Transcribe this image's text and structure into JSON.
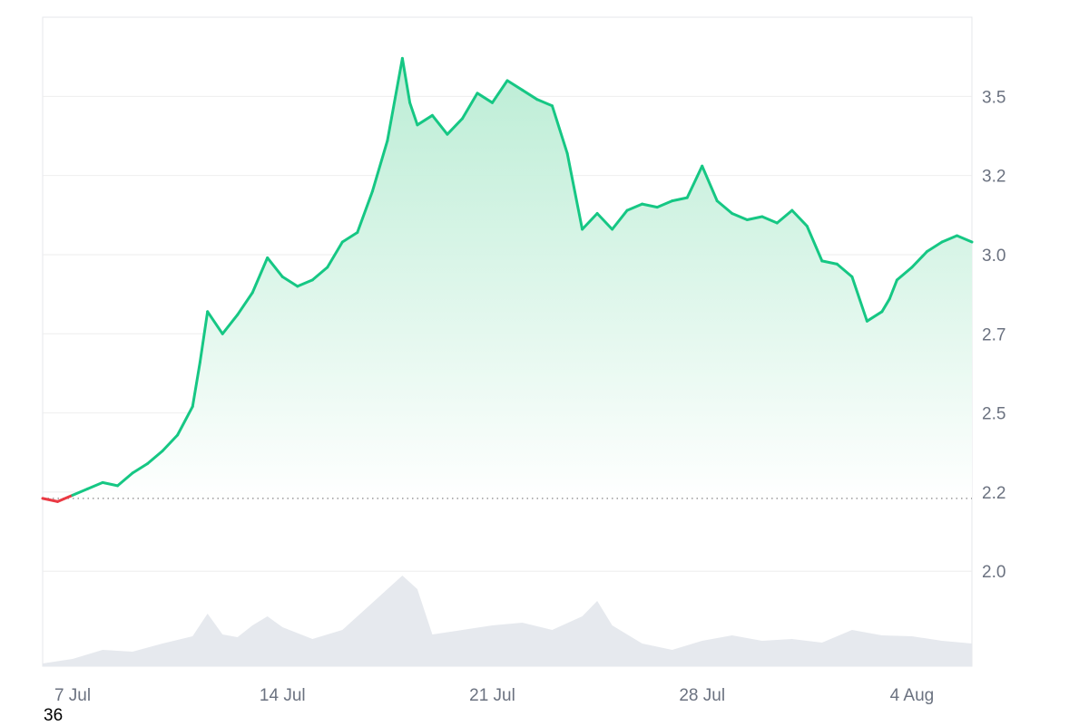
{
  "chart_data": {
    "type": "area",
    "xlabel": "",
    "ylabel": "",
    "x_tick_labels": [
      "7 Jul",
      "14 Jul",
      "21 Jul",
      "28 Jul",
      "4 Aug"
    ],
    "y_tick_labels": [
      "3.5",
      "3.2",
      "3.0",
      "2.7",
      "2.5",
      "2.2",
      "2.0"
    ],
    "y_ticks": [
      3.5,
      3.25,
      3.0,
      2.75,
      2.5,
      2.25,
      2.0
    ],
    "ylim": [
      1.7,
      3.75
    ],
    "x_range_days": [
      "2024-07-06",
      "2024-08-06"
    ],
    "baseline_value": 2.23,
    "grid": true,
    "y_axis_position": "right",
    "colors": {
      "up_line": "#16c784",
      "down_line": "#ea3943",
      "area_top": "#b8ecd3",
      "area_bottom": "#ffffff",
      "volume": "#e6e9ee",
      "grid": "#eeeeee",
      "baseline": "#999999"
    },
    "series": [
      {
        "x": [
          "2024-07-06",
          "2024-07-06 12:00",
          "2024-07-07",
          "2024-07-07 12:00",
          "2024-07-08",
          "2024-07-08 12:00",
          "2024-07-09",
          "2024-07-09 12:00",
          "2024-07-10",
          "2024-07-10 12:00",
          "2024-07-11",
          "2024-07-11 06:00",
          "2024-07-11 12:00",
          "2024-07-12",
          "2024-07-12 12:00",
          "2024-07-13",
          "2024-07-13 12:00",
          "2024-07-14",
          "2024-07-14 12:00",
          "2024-07-15",
          "2024-07-15 12:00",
          "2024-07-16",
          "2024-07-16 12:00",
          "2024-07-17",
          "2024-07-17 12:00",
          "2024-07-18",
          "2024-07-18 06:00",
          "2024-07-18 12:00",
          "2024-07-19",
          "2024-07-19 12:00",
          "2024-07-20",
          "2024-07-20 12:00",
          "2024-07-21",
          "2024-07-21 12:00",
          "2024-07-22",
          "2024-07-22 12:00",
          "2024-07-23",
          "2024-07-23 12:00",
          "2024-07-24",
          "2024-07-24 12:00",
          "2024-07-25",
          "2024-07-25 12:00",
          "2024-07-26",
          "2024-07-26 12:00",
          "2024-07-27",
          "2024-07-27 12:00",
          "2024-07-28",
          "2024-07-28 12:00",
          "2024-07-29",
          "2024-07-29 12:00",
          "2024-07-30",
          "2024-07-30 12:00",
          "2024-07-31",
          "2024-07-31 12:00",
          "2024-08-01",
          "2024-08-01 12:00",
          "2024-08-02",
          "2024-08-02 12:00",
          "2024-08-03",
          "2024-08-03 06:00",
          "2024-08-03 12:00",
          "2024-08-04",
          "2024-08-04 12:00",
          "2024-08-05",
          "2024-08-05 12:00",
          "2024-08-06"
        ],
        "values": [
          2.23,
          2.22,
          2.24,
          2.26,
          2.28,
          2.27,
          2.31,
          2.34,
          2.38,
          2.43,
          2.52,
          2.66,
          2.82,
          2.75,
          2.81,
          2.88,
          2.99,
          2.93,
          2.9,
          2.92,
          2.96,
          3.04,
          3.07,
          3.2,
          3.36,
          3.62,
          3.48,
          3.41,
          3.44,
          3.38,
          3.43,
          3.51,
          3.48,
          3.55,
          3.52,
          3.49,
          3.47,
          3.32,
          3.08,
          3.13,
          3.08,
          3.14,
          3.16,
          3.15,
          3.17,
          3.18,
          3.28,
          3.17,
          3.13,
          3.11,
          3.12,
          3.1,
          3.14,
          3.09,
          2.98,
          2.97,
          2.93,
          2.79,
          2.82,
          2.86,
          2.92,
          2.96,
          3.01,
          3.04,
          3.06,
          3.04
        ]
      }
    ],
    "volume": {
      "x": [
        "2024-07-06",
        "2024-07-07",
        "2024-07-08",
        "2024-07-09",
        "2024-07-10",
        "2024-07-11",
        "2024-07-11 12:00",
        "2024-07-12",
        "2024-07-12 12:00",
        "2024-07-13",
        "2024-07-13 12:00",
        "2024-07-14",
        "2024-07-15",
        "2024-07-16",
        "2024-07-17",
        "2024-07-18",
        "2024-07-18 12:00",
        "2024-07-19",
        "2024-07-20",
        "2024-07-21",
        "2024-07-22",
        "2024-07-23",
        "2024-07-24",
        "2024-07-24 12:00",
        "2024-07-25",
        "2024-07-26",
        "2024-07-27",
        "2024-07-28",
        "2024-07-29",
        "2024-07-30",
        "2024-07-31",
        "2024-08-01",
        "2024-08-02",
        "2024-08-03",
        "2024-08-04",
        "2024-08-05",
        "2024-08-06"
      ],
      "values": [
        0.03,
        0.08,
        0.18,
        0.16,
        0.25,
        0.33,
        0.58,
        0.35,
        0.32,
        0.45,
        0.55,
        0.43,
        0.3,
        0.4,
        0.7,
        1.0,
        0.85,
        0.35,
        0.4,
        0.45,
        0.48,
        0.4,
        0.55,
        0.72,
        0.45,
        0.25,
        0.18,
        0.28,
        0.34,
        0.28,
        0.3,
        0.26,
        0.4,
        0.34,
        0.33,
        0.28,
        0.25
      ]
    }
  },
  "footer": {
    "corner_text": "36"
  }
}
